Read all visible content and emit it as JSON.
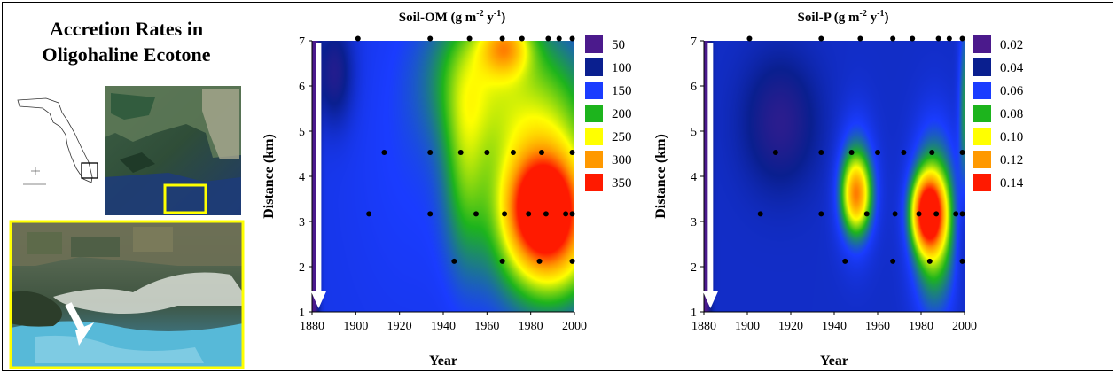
{
  "panel": {
    "title_line1": "Accretion Rates in",
    "title_line2": "Oligohaline Ecotone"
  },
  "colors": {
    "frame": "#000000",
    "highlight_box": "#ffff00",
    "arrow": "#ffffff",
    "scale": [
      "#4b1a8c",
      "#0a1f8f",
      "#1a3cff",
      "#1db41d",
      "#ffff00",
      "#ff9900",
      "#ff1a00"
    ]
  },
  "chart_data": [
    {
      "type": "heatmap",
      "title": "Soil-OM (g m-2 y-1)",
      "title_main": "Soil-OM (g m",
      "title_exp1": "-2",
      "title_mid": " y",
      "title_exp2": "-1",
      "title_end": ")",
      "xlabel": "Year",
      "ylabel": "Distance (km)",
      "xlim": [
        1880,
        2000
      ],
      "ylim": [
        1,
        7
      ],
      "xticks": [
        "1880",
        "1900",
        "1920",
        "1940",
        "1960",
        "1980",
        "2000"
      ],
      "yticks": [
        "1",
        "2",
        "3",
        "4",
        "5",
        "6",
        "7"
      ],
      "legend": [
        {
          "label": "50",
          "color": "#4b1a8c"
        },
        {
          "label": "100",
          "color": "#0a1f8f"
        },
        {
          "label": "150",
          "color": "#1a3cff"
        },
        {
          "label": "200",
          "color": "#1db41d"
        },
        {
          "label": "250",
          "color": "#ffff00"
        },
        {
          "label": "300",
          "color": "#ff9900"
        },
        {
          "label": "350",
          "color": "#ff1a00"
        }
      ],
      "base_value": 140,
      "hotspots": [
        {
          "x": 1986,
          "y": 3.3,
          "value": 345,
          "sx": 11,
          "sy": 0.75
        },
        {
          "x": 1985,
          "y": 4.2,
          "value": 255,
          "sx": 18,
          "sy": 1.8
        },
        {
          "x": 1968,
          "y": 6.9,
          "value": 245,
          "sx": 8,
          "sy": 0.45
        },
        {
          "x": 1955,
          "y": 6.2,
          "value": 205,
          "sx": 16,
          "sy": 1.1
        },
        {
          "x": 1950,
          "y": 4.3,
          "value": 195,
          "sx": 7,
          "sy": 1.6
        },
        {
          "x": 1990,
          "y": 2.2,
          "value": 200,
          "sx": 15,
          "sy": 0.8
        },
        {
          "x": 1925,
          "y": 4.5,
          "value": 150,
          "sx": 20,
          "sy": 2.5
        },
        {
          "x": 1880,
          "y": 4.0,
          "value": 20,
          "sx": 2,
          "sy": 6
        },
        {
          "x": 1890,
          "y": 6.3,
          "value": 80,
          "sx": 6,
          "sy": 0.8
        }
      ],
      "sample_points": [
        [
          1901,
          7.05
        ],
        [
          1934,
          7.05
        ],
        [
          1952,
          7.05
        ],
        [
          1967,
          7.05
        ],
        [
          1976,
          7.05
        ],
        [
          1988,
          7.05
        ],
        [
          1993,
          7.05
        ],
        [
          1999,
          7.05
        ],
        [
          1913,
          4.53
        ],
        [
          1934,
          4.53
        ],
        [
          1948,
          4.53
        ],
        [
          1960,
          4.53
        ],
        [
          1972,
          4.53
        ],
        [
          1985,
          4.53
        ],
        [
          1999,
          4.53
        ],
        [
          1906,
          3.17
        ],
        [
          1934,
          3.17
        ],
        [
          1955,
          3.17
        ],
        [
          1968,
          3.17
        ],
        [
          1979,
          3.17
        ],
        [
          1987,
          3.17
        ],
        [
          1996,
          3.17
        ],
        [
          1999,
          3.17
        ],
        [
          1945,
          2.12
        ],
        [
          1967,
          2.12
        ],
        [
          1984,
          2.12
        ],
        [
          1999,
          2.12
        ]
      ]
    },
    {
      "type": "heatmap",
      "title": "Soil-P (g m-2 y-1)",
      "title_main": "Soil-P (g m",
      "title_exp1": "-2",
      "title_mid": " y",
      "title_exp2": "-1",
      "title_end": ")",
      "xlabel": "Year",
      "ylabel": "Distance (km)",
      "xlim": [
        1880,
        2000
      ],
      "ylim": [
        1,
        7
      ],
      "xticks": [
        "1880",
        "1900",
        "1920",
        "1940",
        "1960",
        "1980",
        "2000"
      ],
      "yticks": [
        "1",
        "2",
        "3",
        "4",
        "5",
        "6",
        "7"
      ],
      "legend": [
        {
          "label": "0.02",
          "color": "#4b1a8c"
        },
        {
          "label": "0.04",
          "color": "#0a1f8f"
        },
        {
          "label": "0.06",
          "color": "#1a3cff"
        },
        {
          "label": "0.08",
          "color": "#1db41d"
        },
        {
          "label": "0.10",
          "color": "#ffff00"
        },
        {
          "label": "0.12",
          "color": "#ff9900"
        },
        {
          "label": "0.14",
          "color": "#ff1a00"
        }
      ],
      "base_value": 0.05,
      "hotspots": [
        {
          "x": 1983,
          "y": 3.2,
          "value": 0.135,
          "sx": 5,
          "sy": 0.55
        },
        {
          "x": 1986,
          "y": 3.0,
          "value": 0.095,
          "sx": 7,
          "sy": 1.3
        },
        {
          "x": 1950,
          "y": 3.6,
          "value": 0.1,
          "sx": 4.5,
          "sy": 0.55
        },
        {
          "x": 1950,
          "y": 3.8,
          "value": 0.075,
          "sx": 6,
          "sy": 1.0
        },
        {
          "x": 1915,
          "y": 5.2,
          "value": 0.03,
          "sx": 12,
          "sy": 1.0
        },
        {
          "x": 1880,
          "y": 4.0,
          "value": 0.01,
          "sx": 2,
          "sy": 6
        },
        {
          "x": 2000,
          "y": 3.0,
          "value": 0.04,
          "sx": 3,
          "sy": 1.0
        },
        {
          "x": 2000,
          "y": 5.5,
          "value": 0.075,
          "sx": 2,
          "sy": 1.5
        }
      ],
      "sample_points": [
        [
          1901,
          7.05
        ],
        [
          1934,
          7.05
        ],
        [
          1952,
          7.05
        ],
        [
          1967,
          7.05
        ],
        [
          1976,
          7.05
        ],
        [
          1988,
          7.05
        ],
        [
          1993,
          7.05
        ],
        [
          1999,
          7.05
        ],
        [
          1913,
          4.53
        ],
        [
          1934,
          4.53
        ],
        [
          1948,
          4.53
        ],
        [
          1960,
          4.53
        ],
        [
          1972,
          4.53
        ],
        [
          1985,
          4.53
        ],
        [
          1999,
          4.53
        ],
        [
          1906,
          3.17
        ],
        [
          1934,
          3.17
        ],
        [
          1955,
          3.17
        ],
        [
          1968,
          3.17
        ],
        [
          1979,
          3.17
        ],
        [
          1987,
          3.17
        ],
        [
          1996,
          3.17
        ],
        [
          1999,
          3.17
        ],
        [
          1945,
          2.12
        ],
        [
          1967,
          2.12
        ],
        [
          1984,
          2.12
        ],
        [
          1999,
          2.12
        ]
      ]
    }
  ]
}
